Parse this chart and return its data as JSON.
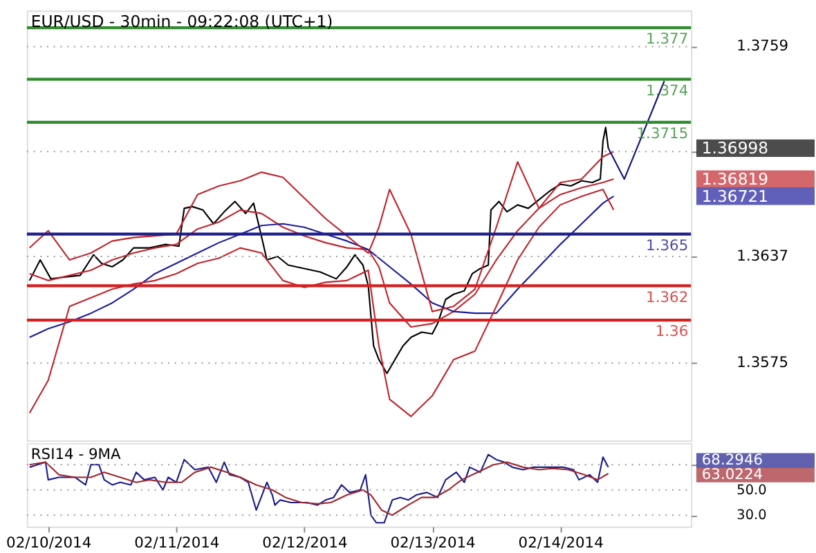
{
  "chart_data": [
    {
      "type": "line",
      "title": "EUR/USD - 30min - 09:22:08 (UTC+1)",
      "x": [
        "2014-02-09T20:30",
        "2014-02-10T00:00",
        "2014-02-10T04:00",
        "2014-02-10T08:00",
        "2014-02-10T12:00",
        "2014-02-10T16:00",
        "2014-02-10T20:00",
        "2014-02-11T00:00",
        "2014-02-11T04:00",
        "2014-02-11T08:00",
        "2014-02-11T12:00",
        "2014-02-11T16:00",
        "2014-02-11T20:00",
        "2014-02-12T00:00",
        "2014-02-12T04:00",
        "2014-02-12T08:00",
        "2014-02-12T12:00",
        "2014-02-12T14:00",
        "2014-02-12T16:00",
        "2014-02-12T20:00",
        "2014-02-13T00:00",
        "2014-02-13T04:00",
        "2014-02-13T08:00",
        "2014-02-13T12:00",
        "2014-02-13T16:00",
        "2014-02-13T20:00",
        "2014-02-14T00:00",
        "2014-02-14T04:00",
        "2014-02-14T08:00",
        "2014-02-14T10:00"
      ],
      "xlim": [
        "2014-02-09T20:00",
        "2014-02-15T00:30"
      ],
      "ylim": [
        1.353,
        1.378
      ],
      "yticks": [
        1.3575,
        1.3637,
        {
          "value": 1.3698,
          "label": null
        },
        1.3759
      ],
      "grid": "y",
      "tick_labels": "y",
      "series": [
        {
          "type": "line",
          "color": "#000000",
          "x": [
            "2014-02-09T20:30",
            "2014-02-09T22:30",
            "2014-02-10T00:30",
            "2014-02-10T03:00",
            "2014-02-10T06:00",
            "2014-02-10T08:30",
            "2014-02-10T10:00",
            "2014-02-10T12:00",
            "2014-02-10T14:00",
            "2014-02-10T16:00",
            "2014-02-10T19:00",
            "2014-02-10T22:00",
            "2014-02-11T00:30",
            "2014-02-11T01:30",
            "2014-02-11T03:00",
            "2014-02-11T05:00",
            "2014-02-11T07:00",
            "2014-02-11T09:00",
            "2014-02-11T11:00",
            "2014-02-11T13:00",
            "2014-02-11T14:30",
            "2014-02-11T15:30",
            "2014-02-11T17:00",
            "2014-02-11T19:00",
            "2014-02-11T21:00",
            "2014-02-12T00:00",
            "2014-02-12T03:00",
            "2014-02-12T06:00",
            "2014-02-12T08:00",
            "2014-02-12T09:30",
            "2014-02-12T11:00",
            "2014-02-12T12:00",
            "2014-02-12T13:00",
            "2014-02-12T14:00",
            "2014-02-12T15:30",
            "2014-02-12T17:00",
            "2014-02-12T18:30",
            "2014-02-12T20:00",
            "2014-02-12T22:00",
            "2014-02-13T00:00",
            "2014-02-13T01:00",
            "2014-02-13T02:30",
            "2014-02-13T04:00",
            "2014-02-13T06:00",
            "2014-02-13T07:30",
            "2014-02-13T09:00",
            "2014-02-13T10:30",
            "2014-02-13T11:00",
            "2014-02-13T12:30",
            "2014-02-13T14:00",
            "2014-02-13T16:00",
            "2014-02-13T18:00",
            "2014-02-13T20:00",
            "2014-02-13T22:00",
            "2014-02-14T00:00",
            "2014-02-14T02:00",
            "2014-02-14T04:00",
            "2014-02-14T06:00",
            "2014-02-14T07:30",
            "2014-02-14T08:00",
            "2014-02-14T08:30",
            "2014-02-14T09:00"
          ],
          "values": [
            1.3623,
            1.3635,
            1.3624,
            1.3625,
            1.3626,
            1.3638,
            1.3633,
            1.3631,
            1.3635,
            1.3642,
            1.3642,
            1.3644,
            1.3643,
            1.3665,
            1.3666,
            1.3664,
            1.3656,
            1.3663,
            1.3669,
            1.3662,
            1.3668,
            1.3655,
            1.3635,
            1.3637,
            1.3632,
            1.363,
            1.3628,
            1.3624,
            1.3631,
            1.3638,
            1.3632,
            1.362,
            1.3585,
            1.3577,
            1.3569,
            1.3577,
            1.3585,
            1.359,
            1.3593,
            1.3592,
            1.3598,
            1.3612,
            1.3615,
            1.3617,
            1.3627,
            1.363,
            1.3632,
            1.3664,
            1.3669,
            1.3663,
            1.3667,
            1.3665,
            1.367,
            1.3675,
            1.3679,
            1.3678,
            1.3681,
            1.368,
            1.3682,
            1.3704,
            1.3712,
            1.37
          ]
        },
        {
          "type": "line",
          "color": "#c0262d",
          "values": [
            1.3627,
            1.3623,
            1.3626,
            1.3629,
            1.3635,
            1.3639,
            1.3642,
            1.3644,
            1.3653,
            1.3657,
            1.3664,
            1.3662,
            1.3654,
            1.3649,
            1.3645,
            1.3642,
            1.3641,
            1.3631,
            1.361,
            1.3596,
            1.3598,
            1.3605,
            1.3615,
            1.3635,
            1.3652,
            1.3665,
            1.3673,
            1.3677,
            1.368,
            1.3682
          ]
        },
        {
          "type": "line",
          "color": "#1c1c9c",
          "values": [
            1.359,
            1.3595,
            1.3599,
            1.3604,
            1.361,
            1.3618,
            1.3627,
            1.3633,
            1.3639,
            1.3645,
            1.365,
            1.3655,
            1.3656,
            1.3654,
            1.365,
            1.3646,
            1.3641,
            1.3636,
            1.3631,
            1.3621,
            1.361,
            1.3605,
            1.3604,
            1.3604,
            1.3618,
            1.3631,
            1.3644,
            1.3656,
            1.3668,
            1.3672
          ]
        },
        {
          "type": "line",
          "color": "#c0262d",
          "values": [
            1.3642,
            1.3652,
            1.3635,
            1.3639,
            1.3646,
            1.3648,
            1.3649,
            1.365,
            1.3673,
            1.3678,
            1.3681,
            1.3686,
            1.3683,
            1.3671,
            1.3659,
            1.3649,
            1.3639,
            1.3654,
            1.3676,
            1.365,
            1.3605,
            1.3608,
            1.3618,
            1.3654,
            1.3692,
            1.3665,
            1.368,
            1.3682,
            1.3695,
            1.3698
          ]
        },
        {
          "type": "line",
          "color": "#c0262d",
          "values": [
            1.3546,
            1.3565,
            1.3608,
            1.3613,
            1.3618,
            1.3621,
            1.3623,
            1.3627,
            1.3633,
            1.3636,
            1.3642,
            1.3639,
            1.3623,
            1.3619,
            1.3622,
            1.3623,
            1.3629,
            1.3585,
            1.3554,
            1.3544,
            1.3556,
            1.3577,
            1.3582,
            1.3608,
            1.3635,
            1.3654,
            1.3667,
            1.3672,
            1.3676,
            1.3664
          ]
        },
        {
          "type": "line",
          "color": "#14147a",
          "x": [
            "2014-02-14T09:00",
            "2014-02-14T12:00",
            "2014-02-14T19:30"
          ],
          "values": [
            1.37,
            1.3682,
            1.3739
          ]
        }
      ],
      "ref_lines": [
        {
          "axis": "y",
          "value": 1.377,
          "label": "1.377",
          "color": "#2e8b2e"
        },
        {
          "axis": "y",
          "value": 1.374,
          "label": "1.374",
          "color": "#2e8b2e"
        },
        {
          "axis": "y",
          "value": 1.3715,
          "label": "1.3715",
          "color": "#2e8b2e"
        },
        {
          "axis": "y",
          "value": 1.365,
          "label": "1.365",
          "color": "#1c1c8c"
        },
        {
          "axis": "y",
          "value": 1.362,
          "label": "1.362",
          "color": "#d42020"
        },
        {
          "axis": "y",
          "value": 1.36,
          "label": "1.36",
          "color": "#d42020"
        }
      ],
      "annotations": [
        "1.36998",
        "1.36819",
        "1.36721"
      ]
    },
    {
      "type": "line",
      "title": "RSI14 - 9MA",
      "xlim": [
        "2014-02-09T20:00",
        "2014-02-15T00:30"
      ],
      "xticks": [
        {
          "value": "2014-02-10T00:00",
          "label": "02/10/2014"
        },
        {
          "value": "2014-02-11T00:00",
          "label": "02/11/2014"
        },
        {
          "value": "2014-02-12T00:00",
          "label": "02/12/2014"
        },
        {
          "value": "2014-02-13T00:00",
          "label": "02/13/2014"
        },
        {
          "value": "2014-02-14T00:00",
          "label": "02/14/2014"
        }
      ],
      "ylim": [
        21,
        87
      ],
      "yticks": [
        {
          "value": 30,
          "label": "30.0"
        },
        {
          "value": 50,
          "label": "50.0"
        },
        {
          "value": 70,
          "label": null
        }
      ],
      "grid": "y",
      "series": [
        {
          "type": "line",
          "color": "#1c1c8c",
          "x": [
            "2014-02-09T20:30",
            "2014-02-09T23:30",
            "2014-02-10T00:00",
            "2014-02-10T02:00",
            "2014-02-10T05:00",
            "2014-02-10T07:00",
            "2014-02-10T08:00",
            "2014-02-10T09:30",
            "2014-02-10T10:30",
            "2014-02-10T12:00",
            "2014-02-10T13:30",
            "2014-02-10T15:30",
            "2014-02-10T16:30",
            "2014-02-10T18:00",
            "2014-02-10T20:00",
            "2014-02-10T21:30",
            "2014-02-10T22:30",
            "2014-02-11T00:00",
            "2014-02-11T01:30",
            "2014-02-11T03:30",
            "2014-02-11T06:00",
            "2014-02-11T07:30",
            "2014-02-11T09:00",
            "2014-02-11T10:00",
            "2014-02-11T12:00",
            "2014-02-11T13:30",
            "2014-02-11T15:00",
            "2014-02-11T17:00",
            "2014-02-11T18:00",
            "2014-02-11T18:30",
            "2014-02-11T19:30",
            "2014-02-11T21:30",
            "2014-02-12T00:30",
            "2014-02-12T02:30",
            "2014-02-12T04:00",
            "2014-02-12T05:30",
            "2014-02-12T07:00",
            "2014-02-12T08:30",
            "2014-02-12T10:30",
            "2014-02-12T11:30",
            "2014-02-12T12:30",
            "2014-02-12T13:30",
            "2014-02-12T15:00",
            "2014-02-12T16:30",
            "2014-02-12T18:00",
            "2014-02-12T19:30",
            "2014-02-12T21:00",
            "2014-02-12T23:00",
            "2014-02-13T01:00",
            "2014-02-13T02:30",
            "2014-02-13T04:30",
            "2014-02-13T06:00",
            "2014-02-13T07:00",
            "2014-02-13T09:00",
            "2014-02-13T10:30",
            "2014-02-13T12:00",
            "2014-02-13T13:30",
            "2014-02-13T15:00",
            "2014-02-13T17:00",
            "2014-02-13T19:00",
            "2014-02-13T21:00",
            "2014-02-13T22:30",
            "2014-02-14T00:30",
            "2014-02-14T02:30",
            "2014-02-14T03:30",
            "2014-02-14T05:30",
            "2014-02-14T07:00",
            "2014-02-14T08:00",
            "2014-02-14T09:00"
          ],
          "values": [
            68,
            72,
            58,
            60,
            60,
            54,
            70,
            70,
            58,
            54,
            56,
            54,
            64,
            58,
            60,
            50,
            60,
            56,
            74,
            66,
            68,
            56,
            72,
            62,
            60,
            56,
            34,
            56,
            46,
            38,
            42,
            40,
            40,
            38,
            42,
            44,
            54,
            48,
            50,
            62,
            30,
            24,
            24,
            42,
            44,
            42,
            46,
            48,
            44,
            58,
            64,
            56,
            68,
            64,
            78,
            74,
            72,
            68,
            66,
            68,
            68,
            68,
            68,
            66,
            58,
            62,
            56,
            76,
            68
          ]
        },
        {
          "type": "line",
          "color": "#a0282d",
          "x": [
            "2014-02-09T20:30",
            "2014-02-09T23:30",
            "2014-02-10T02:00",
            "2014-02-10T05:00",
            "2014-02-10T08:00",
            "2014-02-10T10:30",
            "2014-02-10T13:30",
            "2014-02-10T16:30",
            "2014-02-10T19:00",
            "2014-02-10T22:00",
            "2014-02-11T01:00",
            "2014-02-11T03:30",
            "2014-02-11T06:30",
            "2014-02-11T09:30",
            "2014-02-11T12:00",
            "2014-02-11T15:00",
            "2014-02-11T18:00",
            "2014-02-11T20:30",
            "2014-02-11T23:30",
            "2014-02-12T02:30",
            "2014-02-12T05:00",
            "2014-02-12T08:00",
            "2014-02-12T11:00",
            "2014-02-12T12:30",
            "2014-02-12T14:30",
            "2014-02-12T16:30",
            "2014-02-12T19:30",
            "2014-02-12T22:00",
            "2014-02-13T00:30",
            "2014-02-13T03:00",
            "2014-02-13T05:30",
            "2014-02-13T08:30",
            "2014-02-13T11:30",
            "2014-02-13T14:00",
            "2014-02-13T17:00",
            "2014-02-13T20:00",
            "2014-02-13T22:30",
            "2014-02-14T01:30",
            "2014-02-14T04:30",
            "2014-02-14T07:00",
            "2014-02-14T09:00"
          ],
          "values": [
            70,
            72,
            62,
            60,
            60,
            64,
            60,
            56,
            58,
            56,
            56,
            64,
            68,
            64,
            60,
            54,
            50,
            44,
            40,
            39,
            40,
            46,
            50,
            46,
            34,
            30,
            38,
            44,
            44,
            50,
            58,
            64,
            70,
            72,
            68,
            66,
            67,
            66,
            62,
            58,
            63
          ]
        }
      ],
      "annotations": [
        "68.2946",
        "63.0224"
      ]
    }
  ]
}
